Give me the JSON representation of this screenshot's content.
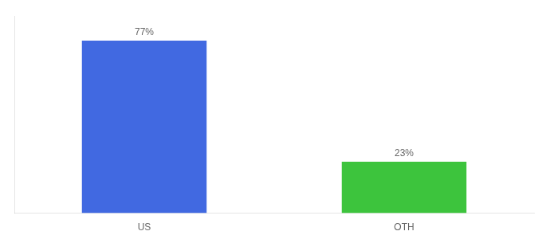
{
  "chart_data": {
    "type": "bar",
    "categories": [
      "US",
      "OTH"
    ],
    "values": [
      77,
      23
    ],
    "value_labels": [
      "77%",
      "23%"
    ],
    "data_labels": true,
    "colors": [
      "#4169e1",
      "#3dc43d"
    ],
    "ylim": [
      0,
      88
    ],
    "tick_labels": "x",
    "grid": false
  }
}
